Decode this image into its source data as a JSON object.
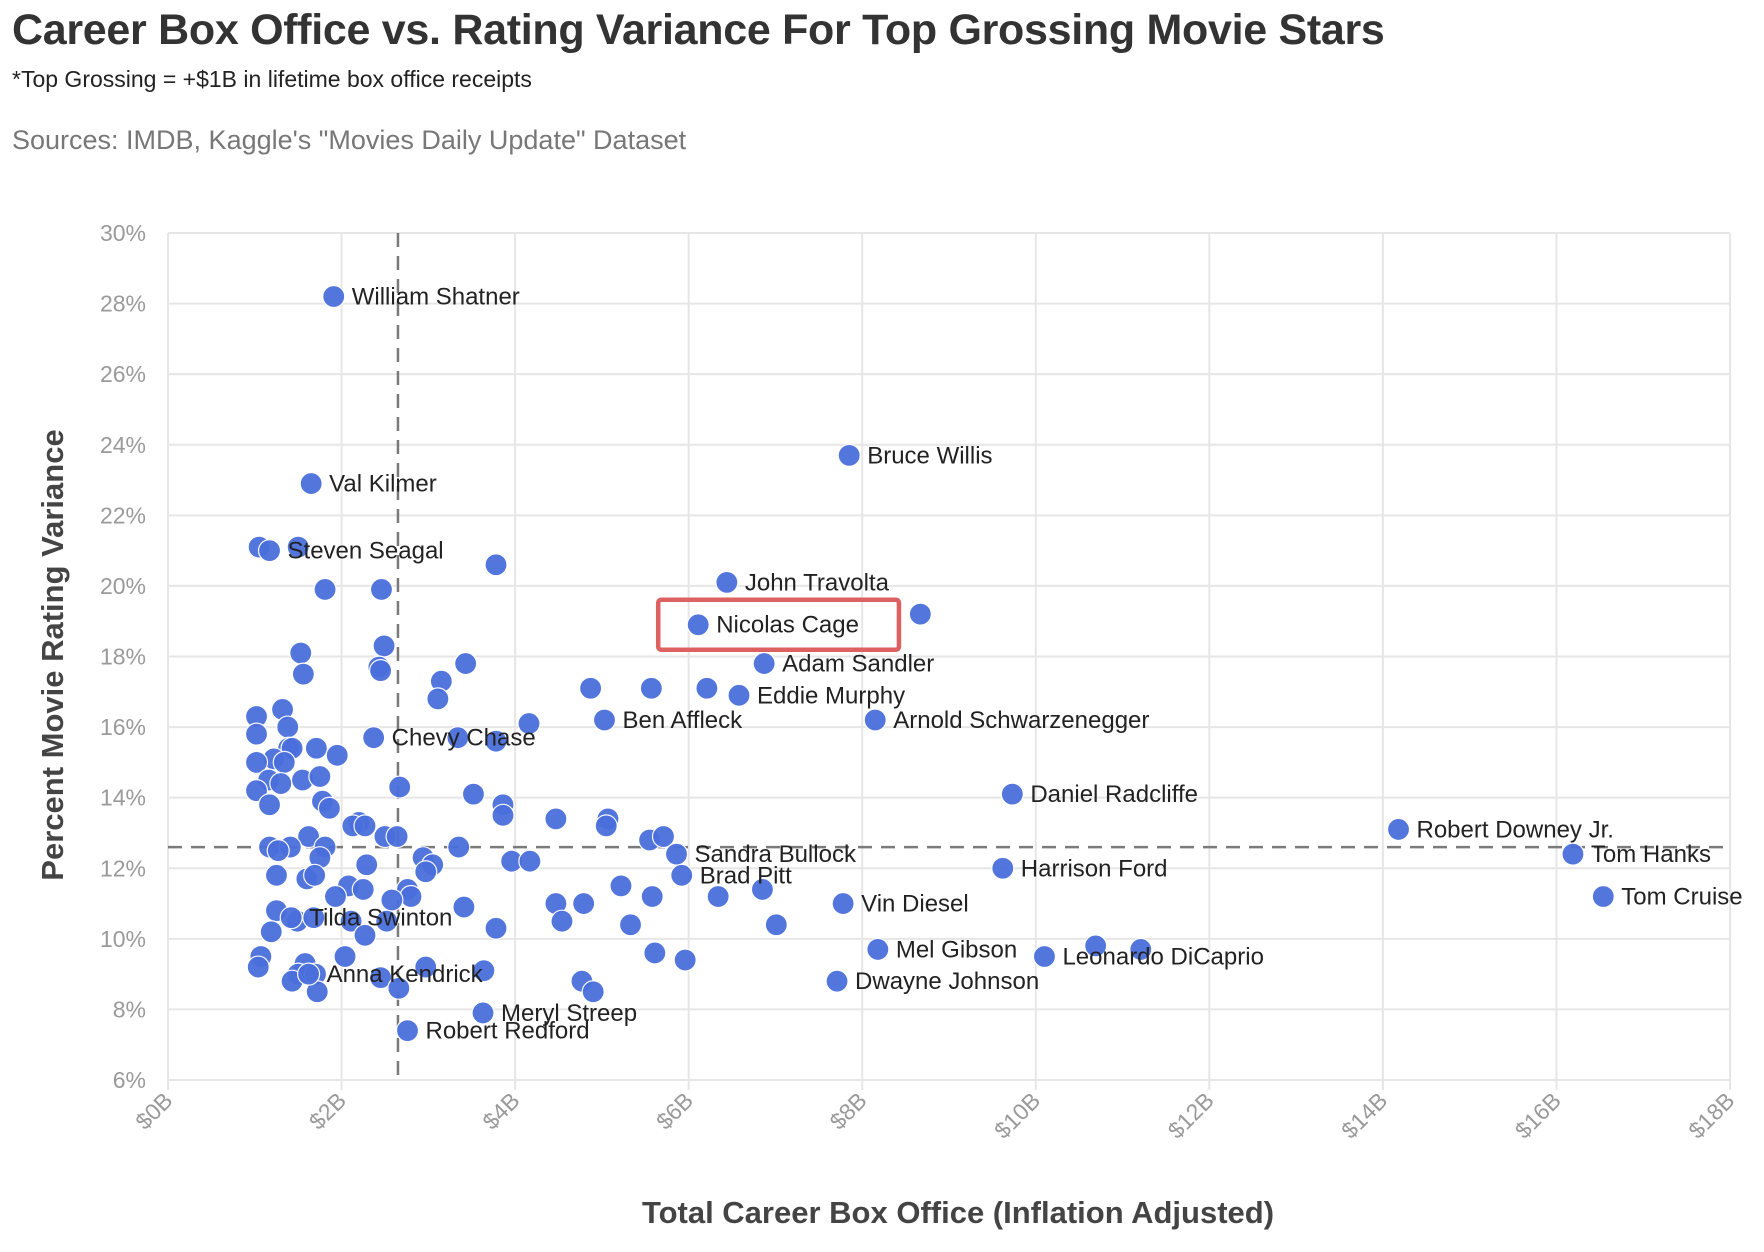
{
  "title": "Career Box Office vs. Rating Variance For Top Grossing Movie Stars",
  "subtitle": "*Top Grossing = +$1B in lifetime box office receipts",
  "source": "Sources: IMDB, Kaggle's \"Movies Daily Update\" Dataset",
  "colors": {
    "point": "#4a6fdc",
    "highlight_box": "#dd6161",
    "gridline": "#e6e6e6",
    "reference_line": "#7a7a7a"
  },
  "chart_data": {
    "type": "scatter",
    "xlabel": "Total Career Box Office (Inflation Adjusted)",
    "ylabel": "Percent Movie Rating Variance",
    "xlim": [
      0,
      18
    ],
    "ylim": [
      6,
      30
    ],
    "x_unit": "billions USD",
    "y_unit": "percent",
    "x_ticks": [
      "$0B",
      "$2B",
      "$4B",
      "$6B",
      "$8B",
      "$10B",
      "$12B",
      "$14B",
      "$16B",
      "$18B"
    ],
    "y_ticks": [
      "6%",
      "8%",
      "10%",
      "12%",
      "14%",
      "16%",
      "18%",
      "20%",
      "22%",
      "24%",
      "26%",
      "28%",
      "30%"
    ],
    "grid": true,
    "reference_lines": {
      "x_mean": 2.65,
      "y_mean": 12.6
    },
    "highlighted": "Nicolas Cage",
    "labeled_points": [
      {
        "name": "William Shatner",
        "x": 1.91,
        "y": 28.2
      },
      {
        "name": "Bruce Willis",
        "x": 7.85,
        "y": 23.7
      },
      {
        "name": "Val Kilmer",
        "x": 1.65,
        "y": 22.9
      },
      {
        "name": "Steven Seagal",
        "x": 1.17,
        "y": 21.0
      },
      {
        "name": "John Travolta",
        "x": 6.44,
        "y": 20.1
      },
      {
        "name": "Nicolas Cage",
        "x": 6.11,
        "y": 18.9
      },
      {
        "name": "Adam Sandler",
        "x": 6.87,
        "y": 17.8
      },
      {
        "name": "Eddie Murphy",
        "x": 6.58,
        "y": 16.9
      },
      {
        "name": "Ben Affleck",
        "x": 5.03,
        "y": 16.2
      },
      {
        "name": "Arnold Schwarzenegger",
        "x": 8.15,
        "y": 16.2
      },
      {
        "name": "Chevy Chase",
        "x": 2.37,
        "y": 15.7
      },
      {
        "name": "Daniel Radcliffe",
        "x": 9.73,
        "y": 14.1
      },
      {
        "name": "Robert Downey Jr.",
        "x": 14.18,
        "y": 13.1
      },
      {
        "name": "Tom Hanks",
        "x": 16.19,
        "y": 12.4
      },
      {
        "name": "Sandra Bullock",
        "x": 5.86,
        "y": 12.4
      },
      {
        "name": "Brad Pitt",
        "x": 5.92,
        "y": 11.8
      },
      {
        "name": "Harrison Ford",
        "x": 9.62,
        "y": 12.0
      },
      {
        "name": "Tom Cruise",
        "x": 16.54,
        "y": 11.2
      },
      {
        "name": "Vin Diesel",
        "x": 7.78,
        "y": 11.0
      },
      {
        "name": "Tilda Swinton",
        "x": 1.42,
        "y": 10.6
      },
      {
        "name": "Mel Gibson",
        "x": 8.18,
        "y": 9.7
      },
      {
        "name": "Leonardo DiCaprio",
        "x": 10.1,
        "y": 9.5
      },
      {
        "name": "Dwayne Johnson",
        "x": 7.71,
        "y": 8.8
      },
      {
        "name": "Anna Kendrick",
        "x": 1.62,
        "y": 9.0
      },
      {
        "name": "Meryl Streep",
        "x": 3.63,
        "y": 7.9
      },
      {
        "name": "Robert Redford",
        "x": 2.76,
        "y": 7.4
      }
    ],
    "unlabeled_points": [
      [
        1.05,
        21.1
      ],
      [
        1.5,
        21.1
      ],
      [
        1.81,
        19.9
      ],
      [
        2.46,
        19.9
      ],
      [
        3.78,
        20.6
      ],
      [
        8.67,
        19.2
      ],
      [
        2.49,
        18.3
      ],
      [
        1.53,
        18.1
      ],
      [
        2.43,
        17.7
      ],
      [
        2.45,
        17.6
      ],
      [
        1.56,
        17.5
      ],
      [
        3.43,
        17.8
      ],
      [
        3.15,
        17.3
      ],
      [
        3.11,
        16.8
      ],
      [
        4.87,
        17.1
      ],
      [
        5.57,
        17.1
      ],
      [
        6.21,
        17.1
      ],
      [
        4.16,
        16.1
      ],
      [
        1.32,
        16.5
      ],
      [
        1.02,
        16.3
      ],
      [
        1.38,
        16.0
      ],
      [
        1.02,
        15.8
      ],
      [
        3.34,
        15.7
      ],
      [
        3.78,
        15.6
      ],
      [
        1.39,
        15.4
      ],
      [
        1.43,
        15.4
      ],
      [
        1.71,
        15.4
      ],
      [
        1.95,
        15.2
      ],
      [
        1.22,
        15.1
      ],
      [
        1.34,
        15.0
      ],
      [
        1.02,
        15.0
      ],
      [
        1.16,
        14.5
      ],
      [
        1.3,
        14.4
      ],
      [
        1.55,
        14.5
      ],
      [
        1.75,
        14.6
      ],
      [
        2.67,
        14.3
      ],
      [
        1.02,
        14.2
      ],
      [
        1.78,
        13.9
      ],
      [
        1.86,
        13.7
      ],
      [
        1.17,
        13.8
      ],
      [
        3.52,
        14.1
      ],
      [
        3.86,
        13.8
      ],
      [
        3.86,
        13.5
      ],
      [
        4.47,
        13.4
      ],
      [
        5.07,
        13.4
      ],
      [
        5.05,
        13.2
      ],
      [
        2.2,
        13.3
      ],
      [
        2.13,
        13.2
      ],
      [
        2.27,
        13.2
      ],
      [
        5.55,
        12.8
      ],
      [
        5.71,
        12.9
      ],
      [
        2.5,
        12.9
      ],
      [
        2.64,
        12.9
      ],
      [
        1.62,
        12.9
      ],
      [
        1.17,
        12.6
      ],
      [
        1.41,
        12.6
      ],
      [
        1.81,
        12.6
      ],
      [
        1.27,
        12.5
      ],
      [
        3.35,
        12.6
      ],
      [
        1.75,
        12.3
      ],
      [
        2.94,
        12.3
      ],
      [
        3.05,
        12.1
      ],
      [
        3.96,
        12.2
      ],
      [
        4.17,
        12.2
      ],
      [
        2.29,
        12.1
      ],
      [
        2.97,
        11.9
      ],
      [
        1.25,
        11.8
      ],
      [
        1.6,
        11.7
      ],
      [
        1.69,
        11.8
      ],
      [
        5.22,
        11.5
      ],
      [
        6.34,
        11.2
      ],
      [
        6.85,
        11.4
      ],
      [
        2.08,
        11.5
      ],
      [
        2.25,
        11.4
      ],
      [
        2.76,
        11.4
      ],
      [
        2.8,
        11.2
      ],
      [
        1.93,
        11.2
      ],
      [
        2.58,
        11.1
      ],
      [
        5.58,
        11.2
      ],
      [
        3.41,
        10.9
      ],
      [
        4.47,
        11.0
      ],
      [
        4.79,
        11.0
      ],
      [
        1.25,
        10.8
      ],
      [
        1.49,
        10.5
      ],
      [
        1.68,
        10.6
      ],
      [
        2.11,
        10.5
      ],
      [
        2.52,
        10.5
      ],
      [
        4.54,
        10.5
      ],
      [
        5.33,
        10.4
      ],
      [
        7.01,
        10.4
      ],
      [
        3.78,
        10.3
      ],
      [
        1.19,
        10.2
      ],
      [
        2.27,
        10.1
      ],
      [
        5.61,
        9.6
      ],
      [
        5.96,
        9.4
      ],
      [
        1.07,
        9.5
      ],
      [
        2.04,
        9.5
      ],
      [
        10.69,
        9.8
      ],
      [
        11.21,
        9.7
      ],
      [
        1.04,
        9.2
      ],
      [
        1.58,
        9.3
      ],
      [
        1.5,
        9.0
      ],
      [
        1.7,
        9.0
      ],
      [
        2.45,
        8.9
      ],
      [
        2.97,
        9.2
      ],
      [
        3.64,
        9.1
      ],
      [
        4.77,
        8.8
      ],
      [
        4.9,
        8.5
      ],
      [
        1.43,
        8.8
      ],
      [
        1.72,
        8.5
      ],
      [
        2.66,
        8.6
      ]
    ]
  }
}
